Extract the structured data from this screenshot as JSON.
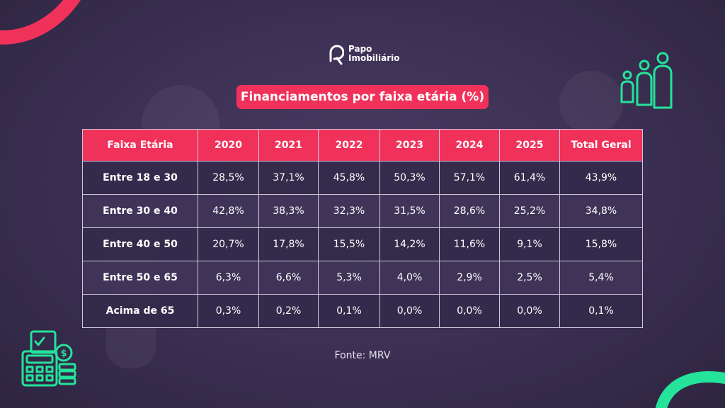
{
  "brand": {
    "name_line1": "Papo",
    "name_line2": "Imobiliário",
    "accent_color": "#f0325b",
    "secondary_color": "#24e39a"
  },
  "icons": [
    "family-icon",
    "calculator-money-icon",
    "papo-logo-icon"
  ],
  "title": "Financiamentos por faixa etária (%)",
  "source": "Fonte: MRV",
  "chart_data": {
    "type": "table",
    "title": "Financiamentos por faixa etária (%)",
    "columns": [
      "Faixa Etária",
      "2020",
      "2021",
      "2022",
      "2023",
      "2024",
      "2025",
      "Total Geral"
    ],
    "rows": [
      {
        "label": "Entre 18 e 30",
        "values": [
          "28,5%",
          "37,1%",
          "45,8%",
          "50,3%",
          "57,1%",
          "61,4%",
          "43,9%"
        ]
      },
      {
        "label": "Entre 30 e 40",
        "values": [
          "42,8%",
          "38,3%",
          "32,3%",
          "31,5%",
          "28,6%",
          "25,2%",
          "34,8%"
        ]
      },
      {
        "label": "Entre 40 e 50",
        "values": [
          "20,7%",
          "17,8%",
          "15,5%",
          "14,2%",
          "11,6%",
          "9,1%",
          "15,8%"
        ]
      },
      {
        "label": "Entre 50 e 65",
        "values": [
          "6,3%",
          "6,6%",
          "5,3%",
          "4,0%",
          "2,9%",
          "2,5%",
          "5,4%"
        ]
      },
      {
        "label": "Acima de 65",
        "values": [
          "0,3%",
          "0,2%",
          "0,1%",
          "0,0%",
          "0,0%",
          "0,0%",
          "0,1%"
        ]
      }
    ]
  }
}
